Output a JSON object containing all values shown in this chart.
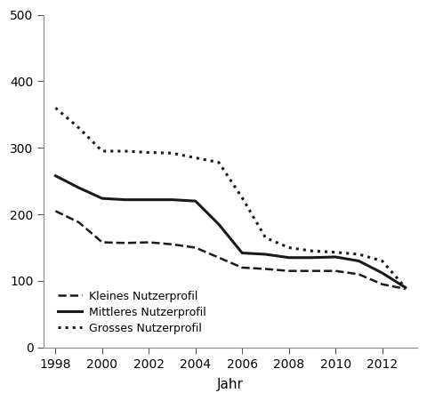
{
  "title": "",
  "xlabel": "Jahr",
  "ylabel": "",
  "ylim": [
    0,
    500
  ],
  "yticks": [
    0,
    100,
    200,
    300,
    400,
    500
  ],
  "xlim": [
    1997.5,
    2013.5
  ],
  "xticks": [
    1998,
    2000,
    2002,
    2004,
    2006,
    2008,
    2010,
    2012
  ],
  "series": {
    "Kleines Nutzerprofil": {
      "x": [
        1998,
        1999,
        2000,
        2001,
        2002,
        2003,
        2004,
        2005,
        2006,
        2007,
        2008,
        2009,
        2010,
        2011,
        2012,
        2013
      ],
      "y": [
        205,
        188,
        158,
        157,
        158,
        155,
        150,
        135,
        120,
        118,
        115,
        115,
        115,
        110,
        95,
        88
      ],
      "linestyle": "dashed",
      "linewidth": 1.8,
      "color": "#1a1a1a"
    },
    "Mittleres Nutzerprofil": {
      "x": [
        1998,
        1999,
        2000,
        2001,
        2002,
        2003,
        2004,
        2005,
        2006,
        2007,
        2008,
        2009,
        2010,
        2011,
        2012,
        2013
      ],
      "y": [
        258,
        240,
        224,
        222,
        222,
        222,
        220,
        185,
        142,
        140,
        135,
        135,
        136,
        130,
        112,
        90
      ],
      "linestyle": "solid",
      "linewidth": 2.2,
      "color": "#1a1a1a"
    },
    "Grosses Nutzerprofil": {
      "x": [
        1998,
        1999,
        2000,
        2001,
        2002,
        2003,
        2004,
        2005,
        2006,
        2007,
        2008,
        2009,
        2010,
        2011,
        2012,
        2013
      ],
      "y": [
        360,
        330,
        295,
        295,
        293,
        292,
        285,
        278,
        225,
        165,
        150,
        145,
        143,
        140,
        130,
        90
      ],
      "linestyle": "dotted",
      "linewidth": 2.2,
      "color": "#1a1a1a"
    }
  },
  "legend_labels": [
    "Kleines Nutzerprofil",
    "Mittleres Nutzerprofil",
    "Grosses Nutzerprofil"
  ],
  "background_color": "#ffffff",
  "font_color": "#000000",
  "spine_color": "#888888",
  "tick_color": "#555555",
  "label_fontsize": 10,
  "xlabel_fontsize": 11
}
